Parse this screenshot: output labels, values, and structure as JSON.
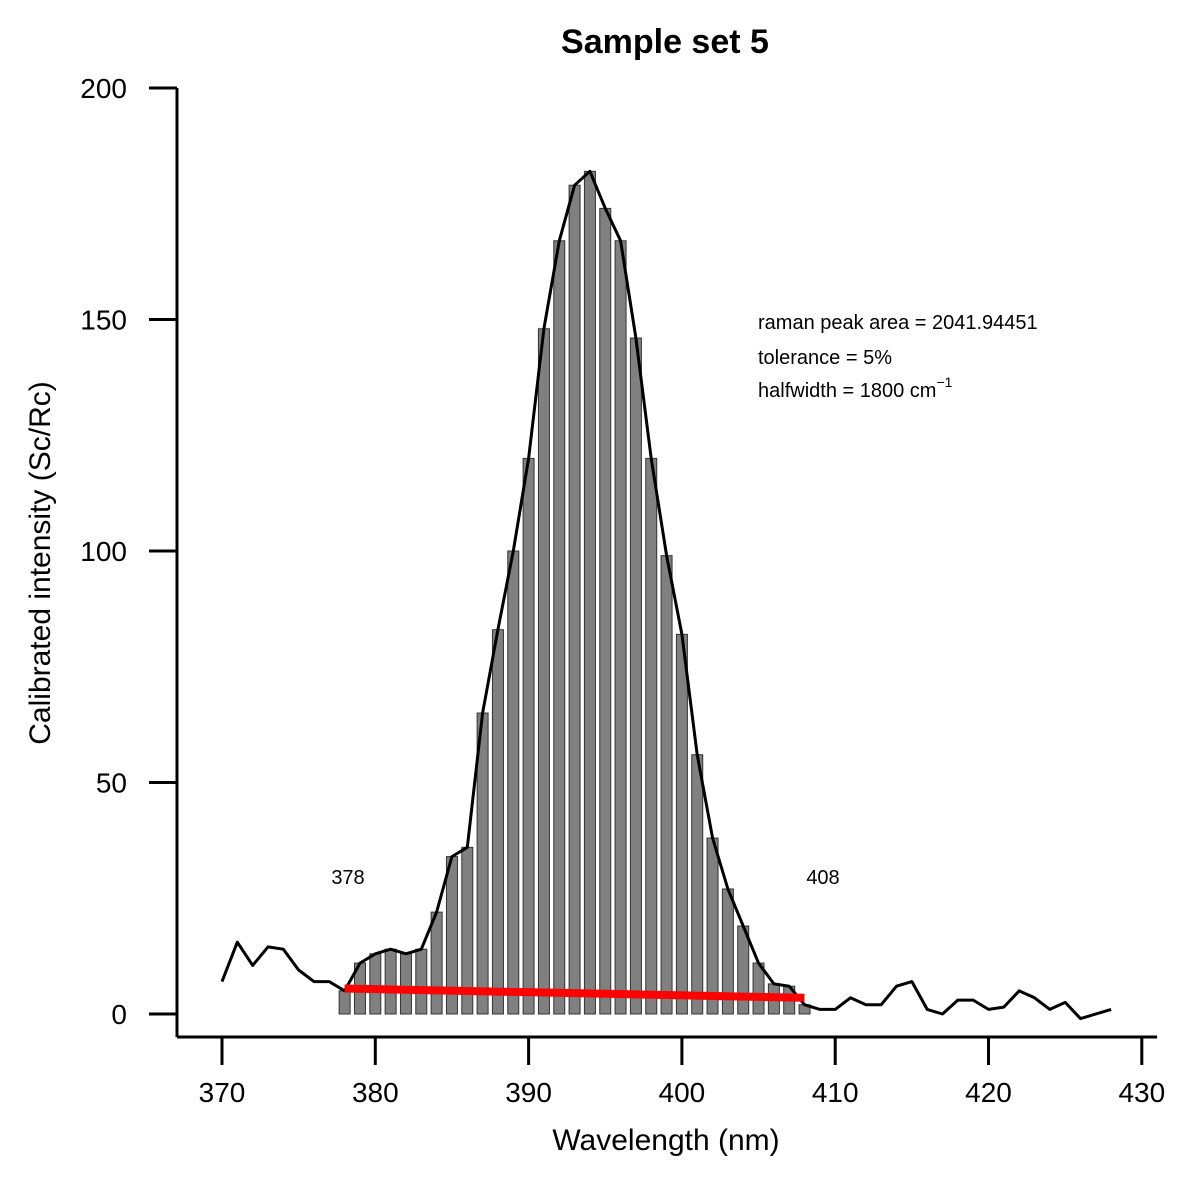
{
  "chart_data": {
    "type": "bar",
    "title": "Sample set 5",
    "xlabel": "Wavelength (nm)",
    "ylabel": "Calibrated intensity (Sc/Rc)",
    "xlim": [
      367,
      431
    ],
    "ylim": [
      -5,
      200
    ],
    "xticks": [
      370,
      380,
      390,
      400,
      410,
      420,
      430
    ],
    "yticks": [
      0,
      50,
      100,
      150,
      200
    ],
    "xtick_labels": [
      "370",
      "380",
      "390",
      "400",
      "410",
      "420",
      "430"
    ],
    "ytick_labels": [
      "0",
      "50",
      "100",
      "150",
      "200"
    ],
    "grid": false,
    "colors": {
      "bars": "#808080",
      "spectrum": "#000000",
      "baseline": "#ff0000"
    },
    "spectrum": {
      "x": [
        370,
        371,
        372,
        373,
        374,
        375,
        376,
        377,
        378,
        379,
        380,
        381,
        382,
        383,
        384,
        385,
        386,
        387,
        388,
        389,
        390,
        391,
        392,
        393,
        394,
        395,
        396,
        397,
        398,
        399,
        400,
        401,
        402,
        403,
        404,
        405,
        406,
        407,
        408,
        409,
        410,
        411,
        412,
        413,
        414,
        415,
        416,
        417,
        418,
        419,
        420,
        421,
        422,
        423,
        424,
        425,
        426,
        427,
        428
      ],
      "y": [
        7,
        15.5,
        10.5,
        14.5,
        14,
        9.5,
        7,
        7,
        5,
        11,
        13,
        14,
        13,
        14,
        22,
        34,
        36,
        65,
        83,
        100,
        120,
        148,
        167,
        179,
        182,
        174,
        167,
        146,
        120,
        99,
        82,
        56,
        38,
        27,
        19,
        11,
        6.5,
        6,
        2,
        1,
        1,
        3.5,
        2,
        2,
        6,
        7,
        1,
        0,
        3,
        3,
        1,
        1.5,
        5,
        3.5,
        1,
        2.5,
        -1,
        0,
        1
      ]
    },
    "integration_bars": {
      "x": [
        378,
        379,
        380,
        381,
        382,
        383,
        384,
        385,
        386,
        387,
        388,
        389,
        390,
        391,
        392,
        393,
        394,
        395,
        396,
        397,
        398,
        399,
        400,
        401,
        402,
        403,
        404,
        405,
        406,
        407,
        408
      ],
      "values": [
        5,
        11,
        13,
        14,
        13,
        14,
        22,
        34,
        36,
        65,
        83,
        100,
        120,
        148,
        167,
        179,
        182,
        174,
        167,
        146,
        120,
        99,
        82,
        56,
        38,
        27,
        19,
        11,
        6.5,
        6,
        2
      ]
    },
    "baseline": {
      "x": [
        378,
        408
      ],
      "y": [
        5.5,
        3.5
      ]
    },
    "bound_labels": [
      "378",
      "408"
    ],
    "annotations": {
      "area": "raman peak area = 2041.94451",
      "tolerance": "tolerance = 5%",
      "halfwidth_prefix": "halfwidth = 1800 cm",
      "halfwidth_superscript": "−1"
    }
  }
}
